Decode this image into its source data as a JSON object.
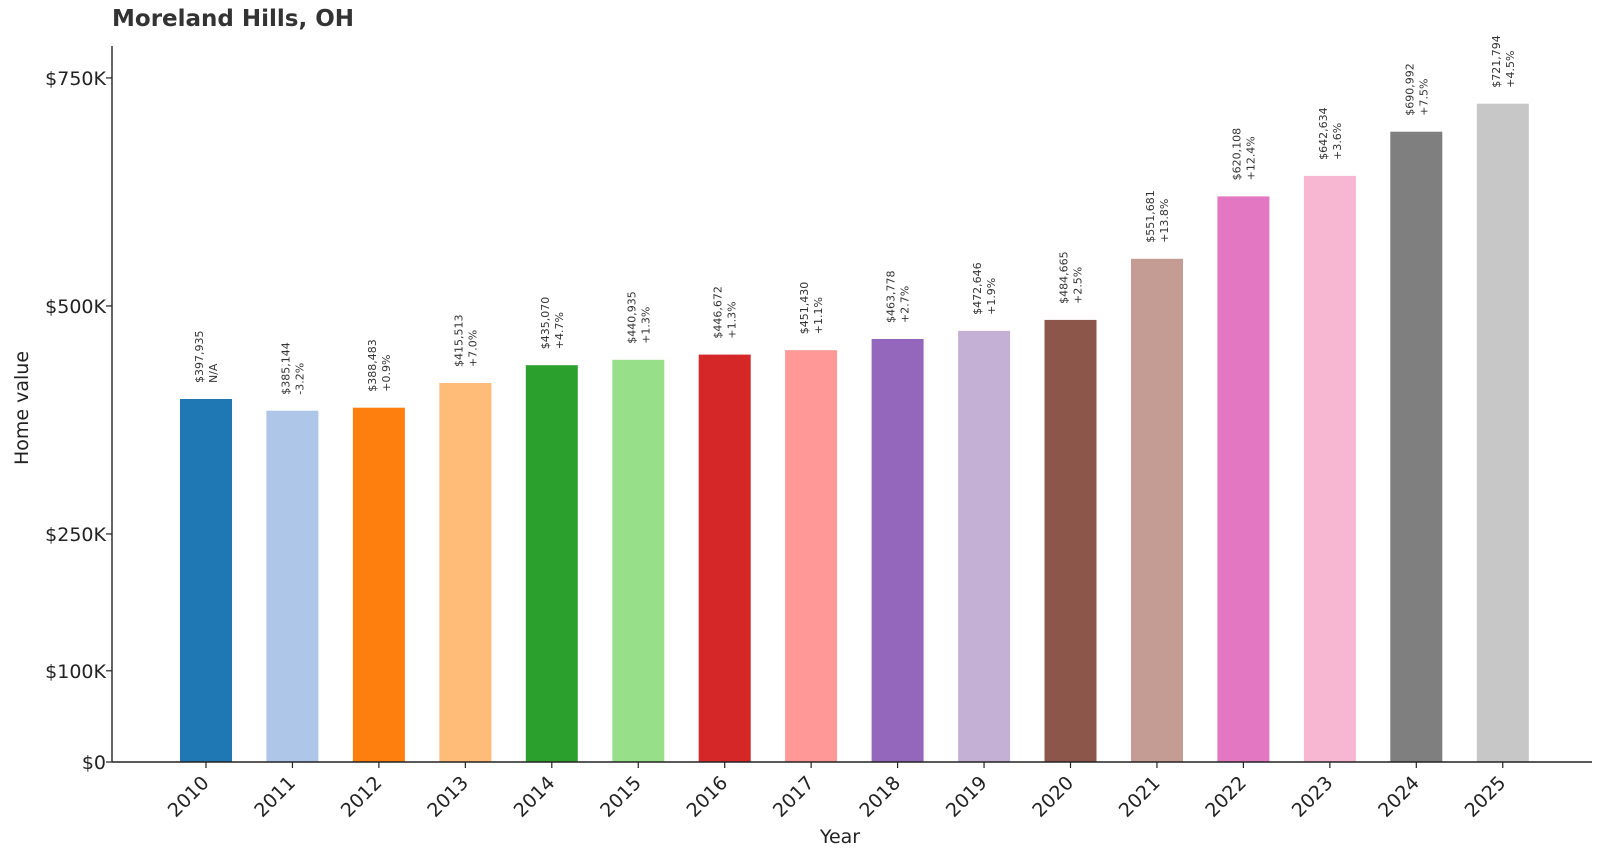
{
  "chart_data": {
    "type": "bar",
    "title": "Moreland Hills, OH",
    "xlabel": "Year",
    "ylabel": "Home value",
    "ylim": [
      0,
      785000
    ],
    "yticks": [
      {
        "value": 0,
        "label": "$0"
      },
      {
        "value": 100000,
        "label": "$100K"
      },
      {
        "value": 250000,
        "label": "$250K"
      },
      {
        "value": 500000,
        "label": "$500K"
      },
      {
        "value": 750000,
        "label": "$750K"
      }
    ],
    "grid": false,
    "legend": "none",
    "categories": [
      "2010",
      "2011",
      "2012",
      "2013",
      "2014",
      "2015",
      "2016",
      "2017",
      "2018",
      "2019",
      "2020",
      "2021",
      "2022",
      "2023",
      "2024",
      "2025"
    ],
    "values": [
      397935,
      385144,
      388483,
      415513,
      435070,
      440935,
      446672,
      451430,
      463778,
      472646,
      484665,
      551681,
      620108,
      642634,
      690992,
      721794
    ],
    "value_labels": [
      "$397,935",
      "$385,144",
      "$388,483",
      "$415,513",
      "$435,070",
      "$440,935",
      "$446,672",
      "$451,430",
      "$463,778",
      "$472,646",
      "$484,665",
      "$551,681",
      "$620,108",
      "$642,634",
      "$690,992",
      "$721,794"
    ],
    "change_labels": [
      "N/A",
      "-3.2%",
      "+0.9%",
      "+7.0%",
      "+4.7%",
      "+1.3%",
      "+1.3%",
      "+1.1%",
      "+2.7%",
      "+1.9%",
      "+2.5%",
      "+13.8%",
      "+12.4%",
      "+3.6%",
      "+7.5%",
      "+4.5%"
    ],
    "colors": [
      "#1f77b4",
      "#aec7e8",
      "#ff7f0e",
      "#ffbb78",
      "#2ca02c",
      "#98df8a",
      "#d62728",
      "#ff9896",
      "#9467bd",
      "#c5b0d5",
      "#8c564b",
      "#c49c94",
      "#e377c2",
      "#f7b6d2",
      "#7f7f7f",
      "#c7c7c7"
    ]
  }
}
